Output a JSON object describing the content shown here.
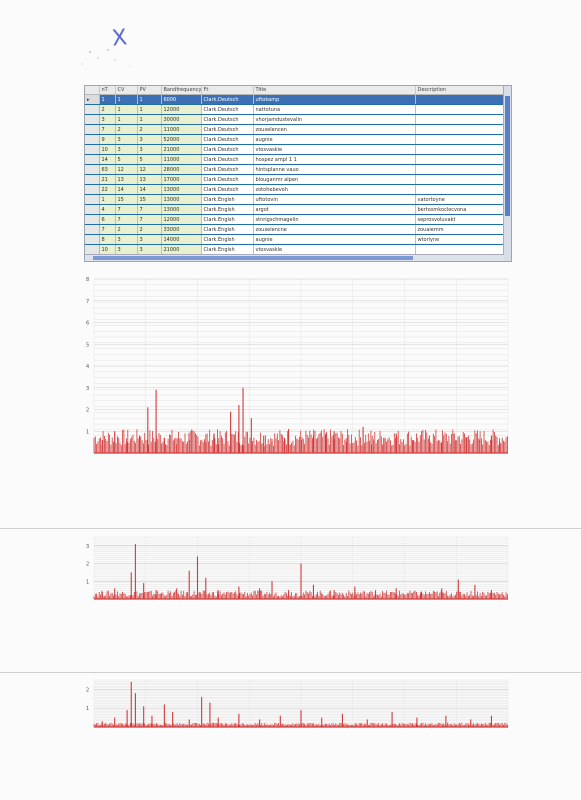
{
  "annotation_mark": "X",
  "grid": {
    "columns": [
      "nT",
      "CV",
      "PV",
      "Bandfrequency",
      "Ft",
      "Title",
      "Description"
    ],
    "selected_row": 0,
    "rows": [
      [
        "1",
        "1",
        "1",
        "6000",
        "Clark.Deutsch",
        "uftokamp",
        ""
      ],
      [
        "2",
        "1",
        "1",
        "12000",
        "Clark.Deutsch",
        "nattotuna",
        ""
      ],
      [
        "3",
        "1",
        "1",
        "30000",
        "Clark.Deutsch",
        "vhorjamdustevalin",
        ""
      ],
      [
        "7",
        "2",
        "2",
        "11000",
        "Clark.Deutsch",
        "zouxelencen",
        ""
      ],
      [
        "9",
        "3",
        "3",
        "52000",
        "Clark.Deutsch",
        "augnie",
        ""
      ],
      [
        "10",
        "3",
        "3",
        "21000",
        "Clark.Deutsch",
        "vtosvaskie",
        ""
      ],
      [
        "14",
        "5",
        "5",
        "11000",
        "Clark.Deutsch",
        "hospez ampl 1 1",
        ""
      ],
      [
        "63",
        "12",
        "12",
        "28000",
        "Clark.Deutsch",
        "hintsplanne vauo",
        ""
      ],
      [
        "21",
        "13",
        "13",
        "17000",
        "Clark.Deutsch",
        "blouganmr alpen",
        ""
      ],
      [
        "22",
        "14",
        "14",
        "13000",
        "Clark.Deutsch",
        "zotohebevoh",
        ""
      ],
      [
        "1",
        "15",
        "15",
        "13000",
        "Clark.Englsh",
        "uftotovin",
        "vatortoyne"
      ],
      [
        "4",
        "7",
        "7",
        "13000",
        "Clark.Englsh",
        "argot",
        "bertosmkoclecvona"
      ],
      [
        "6",
        "7",
        "7",
        "12000",
        "Clark.Englsh",
        "stnrigschmagelin",
        "seprosvoluvakt"
      ],
      [
        "7",
        "2",
        "2",
        "33000",
        "Clark.Englsh",
        "zouxelencne",
        "zouaiemm"
      ],
      [
        "8",
        "3",
        "3",
        "14000",
        "Clark.Englsh",
        "augnie",
        "wtoriyne"
      ],
      [
        "10",
        "3",
        "3",
        "21000",
        "Clark.Englsh",
        "vtosvaskle",
        ""
      ]
    ]
  },
  "chart_data": [
    {
      "type": "bar",
      "title": "",
      "xlabel": "",
      "ylabel": "",
      "yticks": [
        "1",
        "2",
        "3",
        "4",
        "5",
        "6",
        "7",
        "8"
      ],
      "ylim": [
        0,
        8
      ],
      "grid": true,
      "color": "#d23a3a",
      "peaks": [
        {
          "x": 0.02,
          "v": 0.6
        },
        {
          "x": 0.05,
          "v": 1.0
        },
        {
          "x": 0.08,
          "v": 0.5
        },
        {
          "x": 0.11,
          "v": 0.8
        },
        {
          "x": 0.13,
          "v": 2.1
        },
        {
          "x": 0.15,
          "v": 2.9
        },
        {
          "x": 0.17,
          "v": 0.7
        },
        {
          "x": 0.2,
          "v": 0.4
        },
        {
          "x": 0.23,
          "v": 0.6
        },
        {
          "x": 0.27,
          "v": 0.5
        },
        {
          "x": 0.29,
          "v": 0.9
        },
        {
          "x": 0.3,
          "v": 0.4
        },
        {
          "x": 0.33,
          "v": 1.9
        },
        {
          "x": 0.35,
          "v": 2.2
        },
        {
          "x": 0.36,
          "v": 3.0
        },
        {
          "x": 0.38,
          "v": 1.6
        },
        {
          "x": 0.41,
          "v": 0.8
        },
        {
          "x": 0.43,
          "v": 0.5
        },
        {
          "x": 0.46,
          "v": 0.7
        },
        {
          "x": 0.47,
          "v": 1.1
        },
        {
          "x": 0.5,
          "v": 0.6
        },
        {
          "x": 0.53,
          "v": 0.8
        },
        {
          "x": 0.56,
          "v": 0.9
        },
        {
          "x": 0.58,
          "v": 1.0
        },
        {
          "x": 0.61,
          "v": 0.5
        },
        {
          "x": 0.65,
          "v": 1.2
        },
        {
          "x": 0.67,
          "v": 0.4
        },
        {
          "x": 0.7,
          "v": 0.7
        },
        {
          "x": 0.73,
          "v": 0.9
        },
        {
          "x": 0.77,
          "v": 0.6
        },
        {
          "x": 0.81,
          "v": 0.8
        },
        {
          "x": 0.84,
          "v": 0.5
        },
        {
          "x": 0.87,
          "v": 0.9
        },
        {
          "x": 0.9,
          "v": 0.7
        },
        {
          "x": 0.93,
          "v": 0.6
        },
        {
          "x": 0.96,
          "v": 0.8
        },
        {
          "x": 0.98,
          "v": 0.5
        }
      ]
    },
    {
      "type": "bar",
      "title": "",
      "xlabel": "",
      "ylabel": "",
      "yticks": [
        "1",
        "2",
        "3"
      ],
      "ylim": [
        0,
        3.5
      ],
      "grid": true,
      "color": "#d23a3a",
      "peaks": [
        {
          "x": 0.02,
          "v": 0.4
        },
        {
          "x": 0.05,
          "v": 0.6
        },
        {
          "x": 0.09,
          "v": 1.5
        },
        {
          "x": 0.1,
          "v": 3.1
        },
        {
          "x": 0.12,
          "v": 0.9
        },
        {
          "x": 0.15,
          "v": 0.5
        },
        {
          "x": 0.2,
          "v": 0.6
        },
        {
          "x": 0.23,
          "v": 1.6
        },
        {
          "x": 0.25,
          "v": 2.4
        },
        {
          "x": 0.27,
          "v": 1.2
        },
        {
          "x": 0.3,
          "v": 0.5
        },
        {
          "x": 0.35,
          "v": 0.7
        },
        {
          "x": 0.4,
          "v": 0.6
        },
        {
          "x": 0.43,
          "v": 1.0
        },
        {
          "x": 0.47,
          "v": 0.5
        },
        {
          "x": 0.5,
          "v": 2.0
        },
        {
          "x": 0.53,
          "v": 0.8
        },
        {
          "x": 0.58,
          "v": 0.5
        },
        {
          "x": 0.63,
          "v": 0.7
        },
        {
          "x": 0.68,
          "v": 0.5
        },
        {
          "x": 0.73,
          "v": 0.6
        },
        {
          "x": 0.79,
          "v": 0.4
        },
        {
          "x": 0.84,
          "v": 0.6
        },
        {
          "x": 0.88,
          "v": 1.1
        },
        {
          "x": 0.92,
          "v": 0.8
        },
        {
          "x": 0.96,
          "v": 0.5
        }
      ]
    },
    {
      "type": "bar",
      "title": "",
      "xlabel": "",
      "ylabel": "",
      "yticks": [
        "1",
        "2"
      ],
      "ylim": [
        0,
        2.5
      ],
      "grid": true,
      "color": "#d23a3a",
      "peaks": [
        {
          "x": 0.02,
          "v": 0.3
        },
        {
          "x": 0.05,
          "v": 0.5
        },
        {
          "x": 0.08,
          "v": 0.9
        },
        {
          "x": 0.09,
          "v": 2.4
        },
        {
          "x": 0.1,
          "v": 1.8
        },
        {
          "x": 0.12,
          "v": 1.1
        },
        {
          "x": 0.14,
          "v": 0.6
        },
        {
          "x": 0.17,
          "v": 1.2
        },
        {
          "x": 0.19,
          "v": 0.8
        },
        {
          "x": 0.23,
          "v": 0.4
        },
        {
          "x": 0.26,
          "v": 1.6
        },
        {
          "x": 0.28,
          "v": 1.3
        },
        {
          "x": 0.3,
          "v": 0.5
        },
        {
          "x": 0.35,
          "v": 0.7
        },
        {
          "x": 0.4,
          "v": 0.4
        },
        {
          "x": 0.45,
          "v": 0.6
        },
        {
          "x": 0.5,
          "v": 0.9
        },
        {
          "x": 0.55,
          "v": 0.5
        },
        {
          "x": 0.6,
          "v": 0.7
        },
        {
          "x": 0.66,
          "v": 0.4
        },
        {
          "x": 0.72,
          "v": 0.8
        },
        {
          "x": 0.78,
          "v": 0.5
        },
        {
          "x": 0.85,
          "v": 0.6
        },
        {
          "x": 0.91,
          "v": 0.4
        },
        {
          "x": 0.96,
          "v": 0.6
        }
      ]
    }
  ]
}
